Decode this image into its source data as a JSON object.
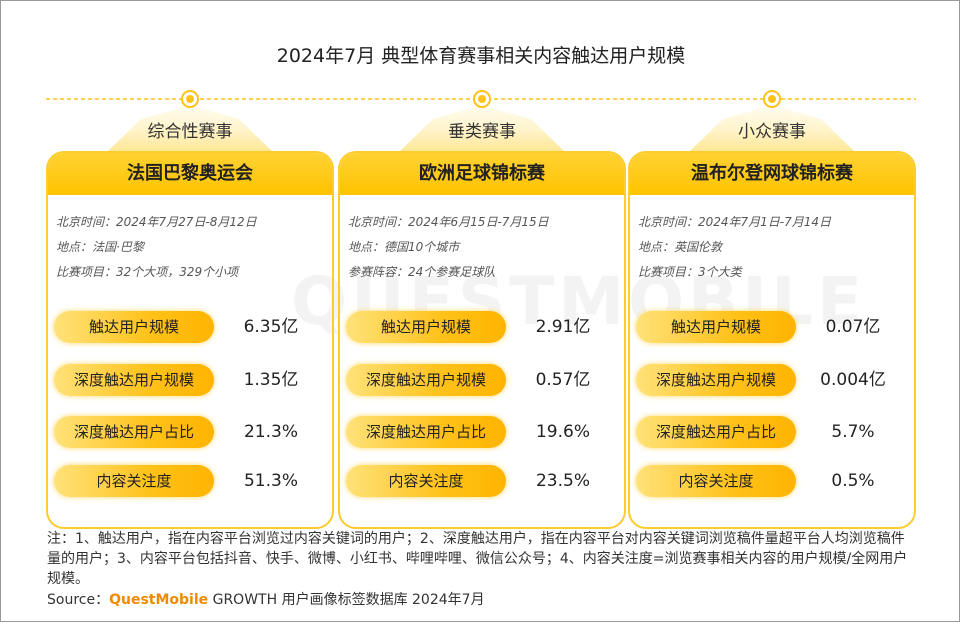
{
  "title": "2024年7月 典型体育赛事相关内容触达用户规模",
  "watermark": "QUESTMOBILE",
  "columns": [
    {
      "category": "综合性赛事",
      "event": "法国巴黎奥运会",
      "info": [
        "北京时间：2024年7月27日-8月12日",
        "地点：法国·巴黎",
        "比赛项目：32个大项，329个小项"
      ],
      "metrics": [
        {
          "label": "触达用户规模",
          "value": "6.35亿"
        },
        {
          "label": "深度触达用户规模",
          "value": "1.35亿"
        },
        {
          "label": "深度触达用户占比",
          "value": "21.3%"
        },
        {
          "label": "内容关注度",
          "value": "51.3%"
        }
      ]
    },
    {
      "category": "垂类赛事",
      "event": "欧洲足球锦标赛",
      "info": [
        "北京时间：2024年6月15日-7月15日",
        "地点：德国10个城市",
        "参赛阵容：24个参赛足球队"
      ],
      "metrics": [
        {
          "label": "触达用户规模",
          "value": "2.91亿"
        },
        {
          "label": "深度触达用户规模",
          "value": "0.57亿"
        },
        {
          "label": "深度触达用户占比",
          "value": "19.6%"
        },
        {
          "label": "内容关注度",
          "value": "23.5%"
        }
      ]
    },
    {
      "category": "小众赛事",
      "event": "温布尔登网球锦标赛",
      "info": [
        "北京时间：2024年7月1日-7月14日",
        "地点：英国伦敦",
        "比赛项目：3个大类"
      ],
      "metrics": [
        {
          "label": "触达用户规模",
          "value": "0.07亿"
        },
        {
          "label": "深度触达用户规模",
          "value": "0.004亿"
        },
        {
          "label": "深度触达用户占比",
          "value": "5.7%"
        },
        {
          "label": "内容关注度",
          "value": "0.5%"
        }
      ]
    }
  ],
  "note": "注：1、触达用户，指在内容平台浏览过内容关键词的用户；2、深度触达用户，指在内容平台对内容关键词浏览稿件量超平台人均浏览稿件量的用户；3、内容平台包括抖音、快手、微博、小红书、哔哩哔哩、微信公众号；4、内容关注度=浏览赛事相关内容的用户规模/全网用户规模。",
  "source": {
    "label": "Source：",
    "brand": "QuestMobile",
    "text": "GROWTH 用户画像标签数据库 2024年7月"
  }
}
